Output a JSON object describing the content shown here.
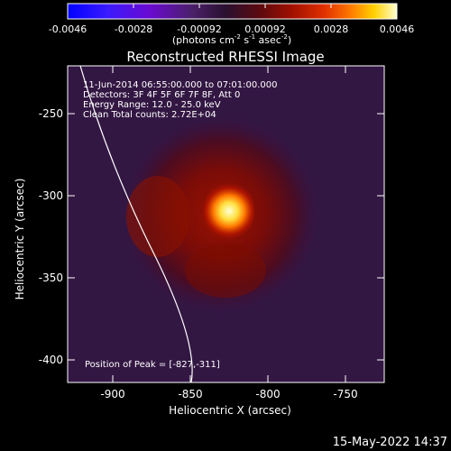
{
  "colorbar": {
    "ticks": [
      "-0.0046",
      "-0.0028",
      "-0.00092",
      "0.00092",
      "0.0028",
      "0.0046"
    ],
    "units_text": "(photons cm",
    "units_exp1": "-2",
    "units_mid": " s",
    "units_exp2": "-1",
    "units_mid2": " asec",
    "units_exp3": "-2",
    "units_close": ")"
  },
  "plot": {
    "title": "Reconstructed RHESSI Image",
    "xlabel": "Heliocentric X (arcsec)",
    "ylabel": "Heliocentric Y (arcsec)",
    "xticks": [
      "-900",
      "-850",
      "-800",
      "-750"
    ],
    "yticks": [
      "-250",
      "-300",
      "-350",
      "-400"
    ],
    "info": [
      "11-Jun-2014 06:55:00.000 to 07:01:00.000",
      "Detectors: 3F 4F 5F 6F 7F 8F, Att 0",
      "Energy Range: 12.0 - 25.0 keV",
      "Clean    Total counts: 2.72E+04"
    ],
    "peak_text": "Position of Peak = [-827,-311]"
  },
  "footer": {
    "timestamp": "15-May-2022 14:37"
  },
  "colors": {
    "background": "#000000",
    "text": "#ffffff",
    "limb": "#ffffff"
  }
}
